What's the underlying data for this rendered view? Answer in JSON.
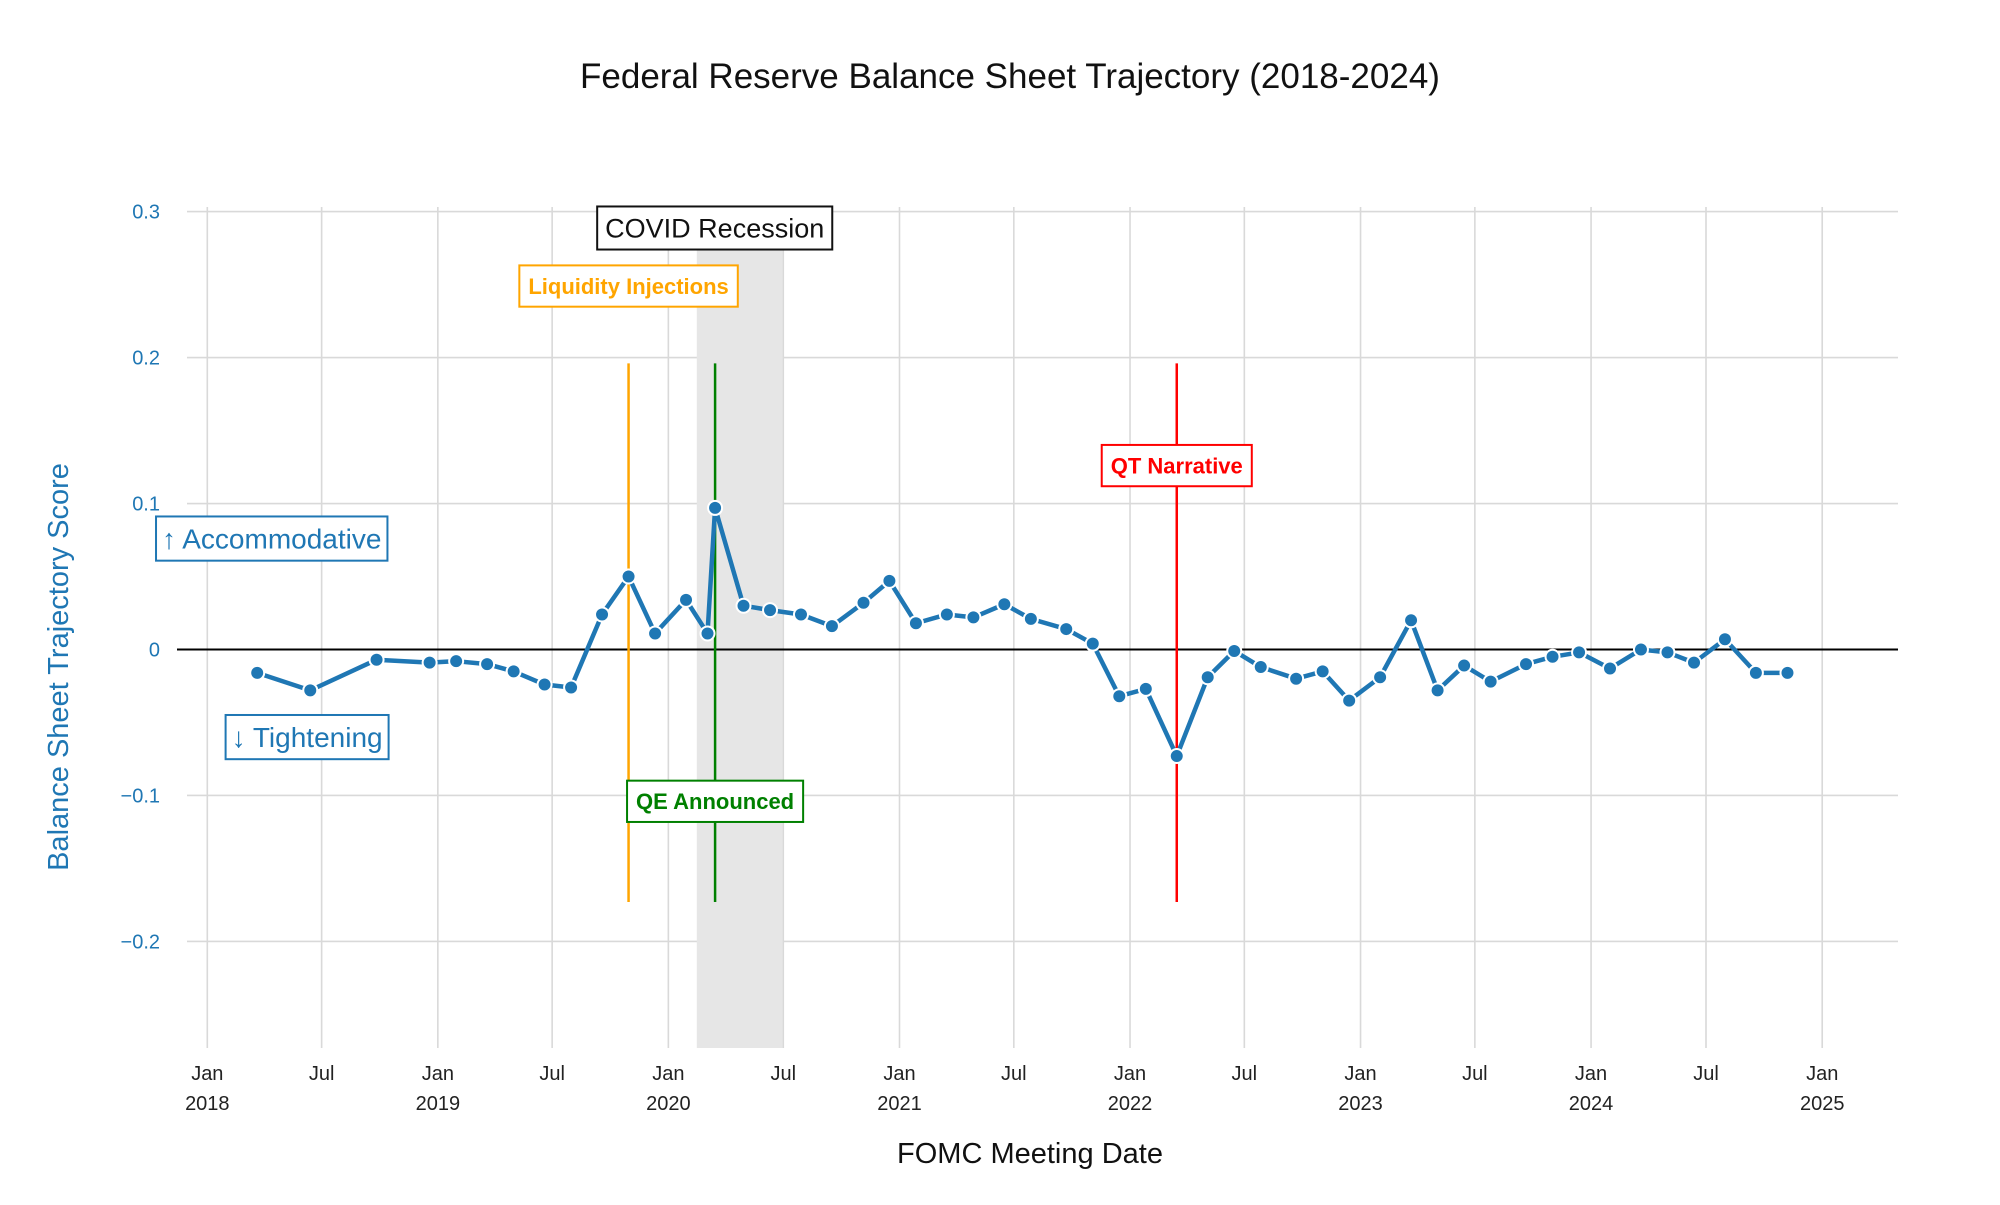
{
  "chart_data": {
    "type": "line",
    "title": "Federal Reserve Balance Sheet Trajectory (2018-2024)",
    "xlabel": "FOMC Meeting Date",
    "ylabel": "Balance Sheet Trajectory Score",
    "xlim": [
      "2017-11-14",
      "2025-05-01"
    ],
    "ylim": [
      -0.273,
      0.31
    ],
    "grid": true,
    "x_ticks": [
      {
        "date": "2018-01-01",
        "label": "Jan",
        "year": "2018"
      },
      {
        "date": "2018-07-01",
        "label": "Jul",
        "year": ""
      },
      {
        "date": "2019-01-01",
        "label": "Jan",
        "year": "2019"
      },
      {
        "date": "2019-07-01",
        "label": "Jul",
        "year": ""
      },
      {
        "date": "2020-01-01",
        "label": "Jan",
        "year": "2020"
      },
      {
        "date": "2020-07-01",
        "label": "Jul",
        "year": ""
      },
      {
        "date": "2021-01-01",
        "label": "Jan",
        "year": "2021"
      },
      {
        "date": "2021-07-01",
        "label": "Jul",
        "year": ""
      },
      {
        "date": "2022-01-01",
        "label": "Jan",
        "year": "2022"
      },
      {
        "date": "2022-07-01",
        "label": "Jul",
        "year": ""
      },
      {
        "date": "2023-01-01",
        "label": "Jan",
        "year": "2023"
      },
      {
        "date": "2023-07-01",
        "label": "Jul",
        "year": ""
      },
      {
        "date": "2024-01-01",
        "label": "Jan",
        "year": "2024"
      },
      {
        "date": "2024-07-01",
        "label": "Jul",
        "year": ""
      },
      {
        "date": "2025-01-01",
        "label": "Jan",
        "year": "2025"
      }
    ],
    "y_ticks": [
      {
        "value": 0.3,
        "label": "0.3"
      },
      {
        "value": 0.2,
        "label": "0.2"
      },
      {
        "value": 0.1,
        "label": "0.1"
      },
      {
        "value": 0,
        "label": "0"
      },
      {
        "value": -0.1,
        "label": "−0.1"
      },
      {
        "value": -0.2,
        "label": "−0.2"
      }
    ],
    "series": [
      {
        "color": "#1f77b4",
        "x": [
          "2018-03-21",
          "2018-06-13",
          "2018-09-26",
          "2018-12-19",
          "2019-01-30",
          "2019-03-20",
          "2019-05-01",
          "2019-06-19",
          "2019-07-31",
          "2019-09-18",
          "2019-10-30",
          "2019-12-11",
          "2020-01-29",
          "2020-03-03",
          "2020-03-15",
          "2020-04-29",
          "2020-06-10",
          "2020-07-29",
          "2020-09-16",
          "2020-11-05",
          "2020-12-16",
          "2021-01-27",
          "2021-03-17",
          "2021-04-28",
          "2021-06-16",
          "2021-07-28",
          "2021-09-22",
          "2021-11-03",
          "2021-12-15",
          "2022-01-26",
          "2022-03-16",
          "2022-05-04",
          "2022-06-15",
          "2022-07-27",
          "2022-09-21",
          "2022-11-02",
          "2022-12-14",
          "2023-02-01",
          "2023-03-22",
          "2023-05-03",
          "2023-06-14",
          "2023-07-26",
          "2023-09-20",
          "2023-11-01",
          "2023-12-13",
          "2024-01-31",
          "2024-03-20",
          "2024-05-01",
          "2024-06-12",
          "2024-07-31",
          "2024-09-18",
          "2024-11-07"
        ],
        "y": [
          -0.016,
          -0.028,
          -0.007,
          -0.009,
          -0.008,
          -0.01,
          -0.015,
          -0.024,
          -0.026,
          0.024,
          0.05,
          0.011,
          0.034,
          0.011,
          0.097,
          0.03,
          0.027,
          0.024,
          0.016,
          0.032,
          0.047,
          0.018,
          0.024,
          0.022,
          0.031,
          0.021,
          0.014,
          0.004,
          -0.032,
          -0.027,
          -0.073,
          -0.019,
          -0.001,
          -0.012,
          -0.02,
          -0.015,
          -0.035,
          -0.019,
          0.02,
          -0.028,
          -0.011,
          -0.022,
          -0.01,
          -0.005,
          -0.002,
          -0.013,
          0.0,
          -0.002,
          -0.009,
          0.007,
          -0.016,
          -0.016
        ]
      }
    ],
    "shaded_regions": [
      {
        "x0": "2020-02-15",
        "x1": "2020-06-30",
        "label": "COVID Recession",
        "color": "#e6e6e6"
      }
    ],
    "vertical_lines": [
      {
        "date": "2019-10-30",
        "label": "Liquidity Injections",
        "color": "#ffa500",
        "y0": -0.173,
        "y1": 0.196,
        "label_y": 0.249
      },
      {
        "date": "2020-03-15",
        "label": "QE Announced",
        "color": "#008000",
        "y0": -0.173,
        "y1": 0.196,
        "label_y": -0.104
      },
      {
        "date": "2022-03-16",
        "label": "QT Narrative",
        "color": "#ff0000",
        "y0": -0.173,
        "y1": 0.196,
        "label_y": 0.126
      }
    ],
    "annotations": [
      {
        "text": "↑ Accommodative",
        "date": "2018-04-13",
        "y": 0.076
      },
      {
        "text": "↓ Tightening",
        "date": "2018-06-08",
        "y": -0.06
      }
    ],
    "zero_line": true
  }
}
